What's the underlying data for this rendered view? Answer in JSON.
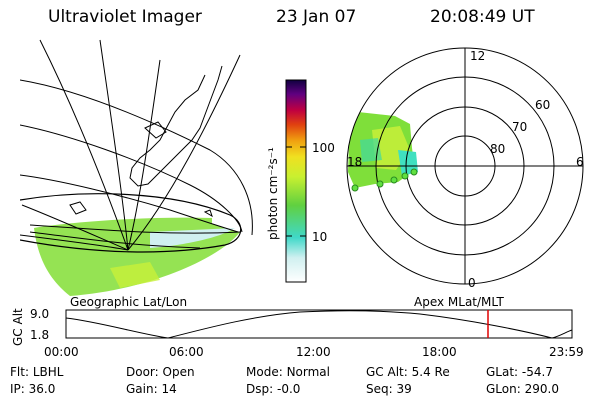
{
  "header": {
    "title": "Ultraviolet Imager",
    "date": "23 Jan 07",
    "time": "20:08:49 UT"
  },
  "colorbar": {
    "unit_label": "photon cm⁻²s⁻¹",
    "ticks": [
      "100",
      "10"
    ]
  },
  "polar": {
    "mlt_labels": [
      "12",
      "18",
      "6",
      "0"
    ],
    "lat_labels": [
      "60",
      "70",
      "80"
    ]
  },
  "maps": {
    "left_label": "Geographic Lat/Lon",
    "right_label": "Apex MLat/MLT"
  },
  "orbit": {
    "ylabel": "GC Alt",
    "y_ticks": [
      "9.0",
      "1.8"
    ],
    "x_ticks": [
      "00:00",
      "06:00",
      "12:00",
      "18:00",
      "23:59"
    ],
    "current_time_marker": "20:08"
  },
  "footer": {
    "row1": [
      {
        "key": "Flt:",
        "val": "LBHL"
      },
      {
        "key": "Door:",
        "val": "Open"
      },
      {
        "key": "Mode:",
        "val": "Normal"
      },
      {
        "key": "GC Alt:",
        "val": "5.4 Re"
      },
      {
        "key": "GLat:",
        "val": "-54.7"
      }
    ],
    "row2": [
      {
        "key": "IP:",
        "val": "36.0"
      },
      {
        "key": "Gain:",
        "val": "14"
      },
      {
        "key": "Dsp:",
        "val": "-0.0"
      },
      {
        "key": "Seq:",
        "val": "39"
      },
      {
        "key": "GLon:",
        "val": "290.0"
      }
    ]
  },
  "colors": {
    "marker": "#e00000",
    "aurora_low": "#7fdf3a",
    "aurora_mid": "#c8f03a",
    "aurora_cyan": "#40e0c0"
  }
}
